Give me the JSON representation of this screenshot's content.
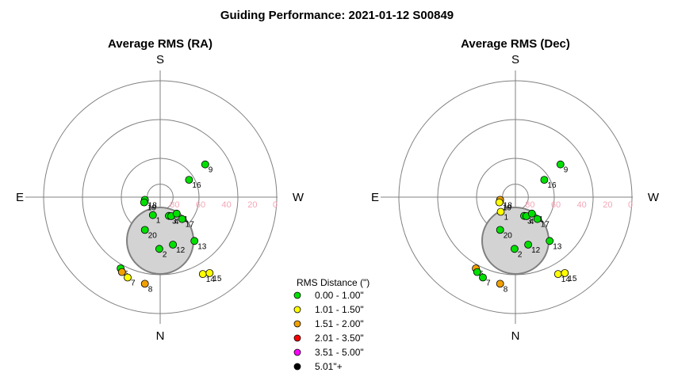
{
  "title": "Guiding Performance: 2021-01-12 S00849",
  "compass": {
    "north": "N",
    "south": "S",
    "east": "E",
    "west": "W"
  },
  "legend": {
    "title": "RMS Distance (\")",
    "entries": [
      {
        "label": "0.00 - 1.00\"",
        "color": "#00e000"
      },
      {
        "label": "1.01 - 1.50\"",
        "color": "#ffff00"
      },
      {
        "label": "1.51 - 2.00\"",
        "color": "#f0a000"
      },
      {
        "label": "2.01 - 3.50\"",
        "color": "#ff0000"
      },
      {
        "label": "3.51 - 5.00\"",
        "color": "#ff00ff"
      },
      {
        "label": "5.01\"+",
        "color": "#000000"
      }
    ]
  },
  "chart_data": [
    {
      "type": "scatter",
      "projection": "polar-sky (azimuth / altitude)",
      "title": "Average RMS (RA)",
      "altitude_ticks": [
        "80",
        "60",
        "40",
        "20",
        "0"
      ],
      "altitude_rings": [
        80,
        60,
        30,
        0
      ],
      "blocked_region": "zenith-north",
      "points": [
        {
          "label": "1",
          "az": 158,
          "alt": 75,
          "class": 0
        },
        {
          "label": "2",
          "az": 179,
          "alt": 50,
          "class": 0
        },
        {
          "label": "3",
          "az": 205,
          "alt": 74,
          "class": 0
        },
        {
          "label": "4",
          "az": 210,
          "alt": 73,
          "class": 0
        },
        {
          "label": "5",
          "az": 151,
          "alt": 27,
          "class": 0
        },
        {
          "label": "6",
          "az": 153,
          "alt": 25,
          "class": 2
        },
        {
          "label": "7",
          "az": 158,
          "alt": 23,
          "class": 1
        },
        {
          "label": "8",
          "az": 170,
          "alt": 22,
          "class": 2
        },
        {
          "label": "9",
          "az": 306,
          "alt": 47,
          "class": 0
        },
        {
          "label": "11",
          "az": 225,
          "alt": 72,
          "class": 0
        },
        {
          "label": "12",
          "az": 195,
          "alt": 52,
          "class": 0
        },
        {
          "label": "13",
          "az": 218,
          "alt": 47,
          "class": 0
        },
        {
          "label": "14",
          "az": 209,
          "alt": 22,
          "class": 1
        },
        {
          "label": "15",
          "az": 213,
          "alt": 20,
          "class": 1
        },
        {
          "label": "16",
          "az": 301,
          "alt": 64,
          "class": 0
        },
        {
          "label": "17",
          "az": 225,
          "alt": 66,
          "class": 0
        },
        {
          "label": "18",
          "az": 100,
          "alt": 78,
          "class": 0
        },
        {
          "label": "19",
          "az": 108,
          "alt": 77,
          "class": 0
        },
        {
          "label": "20",
          "az": 155,
          "alt": 62,
          "class": 0
        }
      ]
    },
    {
      "type": "scatter",
      "projection": "polar-sky (azimuth / altitude)",
      "title": "Average RMS (Dec)",
      "altitude_ticks": [
        "80",
        "60",
        "40",
        "20",
        "0"
      ],
      "altitude_rings": [
        80,
        60,
        30,
        0
      ],
      "blocked_region": "zenith-north",
      "points": [
        {
          "label": "1",
          "az": 135,
          "alt": 74,
          "class": 1
        },
        {
          "label": "2",
          "az": 179,
          "alt": 50,
          "class": 0
        },
        {
          "label": "3",
          "az": 205,
          "alt": 74,
          "class": 0
        },
        {
          "label": "4",
          "az": 210,
          "alt": 73,
          "class": 0
        },
        {
          "label": "5",
          "az": 151,
          "alt": 27,
          "class": 2
        },
        {
          "label": "6",
          "az": 153,
          "alt": 25,
          "class": 0
        },
        {
          "label": "7",
          "az": 158,
          "alt": 23,
          "class": 0
        },
        {
          "label": "8",
          "az": 170,
          "alt": 22,
          "class": 2
        },
        {
          "label": "9",
          "az": 306,
          "alt": 47,
          "class": 0
        },
        {
          "label": "11",
          "az": 225,
          "alt": 72,
          "class": 0
        },
        {
          "label": "12",
          "az": 195,
          "alt": 52,
          "class": 0
        },
        {
          "label": "13",
          "az": 218,
          "alt": 47,
          "class": 0
        },
        {
          "label": "14",
          "az": 209,
          "alt": 22,
          "class": 1
        },
        {
          "label": "15",
          "az": 213,
          "alt": 20,
          "class": 1
        },
        {
          "label": "16",
          "az": 301,
          "alt": 64,
          "class": 0
        },
        {
          "label": "17",
          "az": 225,
          "alt": 66,
          "class": 0
        },
        {
          "label": "18",
          "az": 100,
          "alt": 78,
          "class": 2
        },
        {
          "label": "19",
          "az": 108,
          "alt": 77,
          "class": 1
        },
        {
          "label": "20",
          "az": 155,
          "alt": 62,
          "class": 0
        }
      ]
    }
  ]
}
